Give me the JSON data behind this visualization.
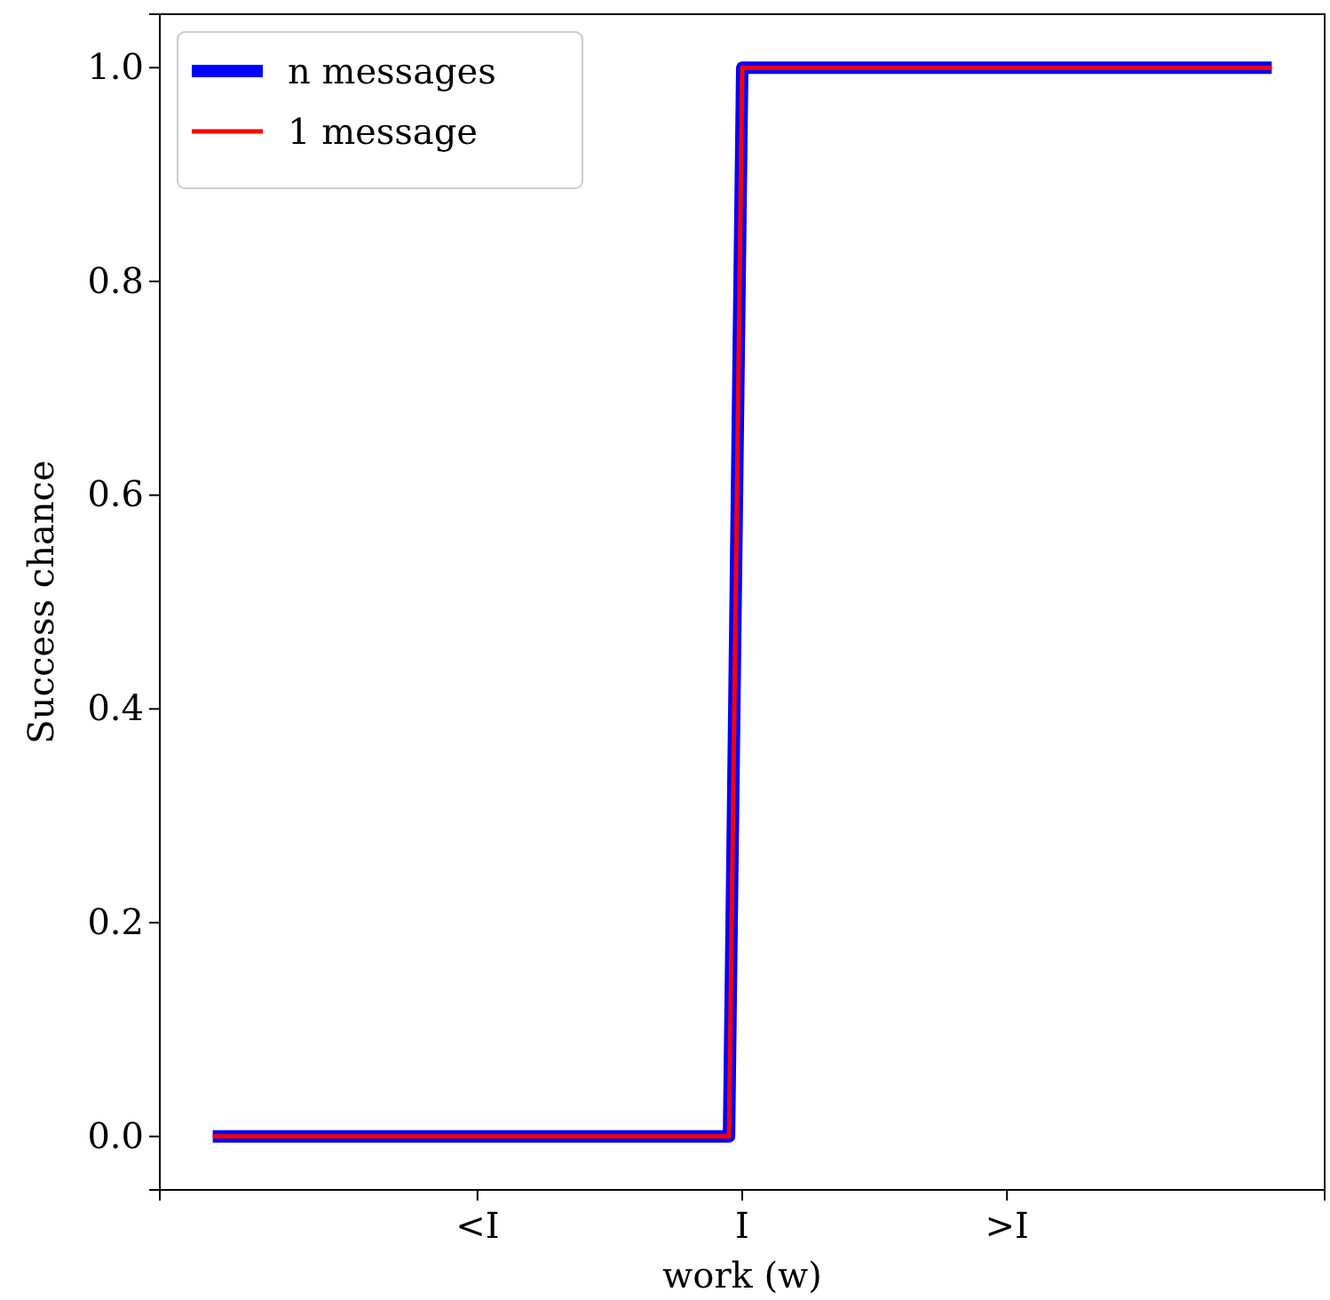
{
  "chart_data": {
    "type": "line",
    "xlabel": "work (w)",
    "ylabel": "Success chance",
    "categories": [
      null,
      null,
      null,
      null,
      null,
      null,
      null,
      null,
      null,
      null,
      null,
      null,
      null,
      null,
      null,
      null,
      null,
      null,
      null,
      null,
      "<I",
      null,
      null,
      null,
      null,
      null,
      null,
      null,
      null,
      null,
      null,
      null,
      null,
      null,
      null,
      null,
      null,
      null,
      null,
      null,
      "I",
      null,
      null,
      null,
      null,
      null,
      null,
      null,
      null,
      null,
      null,
      null,
      null,
      null,
      null,
      null,
      null,
      null,
      null,
      null,
      ">I",
      null,
      null,
      null,
      null,
      null,
      null,
      null,
      null,
      null,
      null,
      null,
      null,
      null,
      null,
      null,
      null,
      null,
      null,
      null,
      null
    ],
    "series": [
      {
        "name": "n messages",
        "color": "#0000ff",
        "values": [
          0,
          0,
          0,
          0,
          0,
          0,
          0,
          0,
          0,
          0,
          0,
          0,
          0,
          0,
          0,
          0,
          0,
          0,
          0,
          0,
          0,
          0,
          0,
          0,
          0,
          0,
          0,
          0,
          0,
          0,
          0,
          0,
          0,
          0,
          0,
          0,
          0,
          0,
          0,
          0,
          1,
          1,
          1,
          1,
          1,
          1,
          1,
          1,
          1,
          1,
          1,
          1,
          1,
          1,
          1,
          1,
          1,
          1,
          1,
          1,
          1,
          1,
          1,
          1,
          1,
          1,
          1,
          1,
          1,
          1,
          1,
          1,
          1,
          1,
          1,
          1,
          1,
          1,
          1,
          1,
          1
        ]
      },
      {
        "name": "1 message",
        "color": "#ff0000",
        "values": [
          0,
          0,
          0,
          0,
          0,
          0,
          0,
          0,
          0,
          0,
          0,
          0,
          0,
          0,
          0,
          0,
          0,
          0,
          0,
          0,
          0,
          0,
          0,
          0,
          0,
          0,
          0,
          0,
          0,
          0,
          0,
          0,
          0,
          0,
          0,
          0,
          0,
          0,
          0,
          0,
          1,
          1,
          1,
          1,
          1,
          1,
          1,
          1,
          1,
          1,
          1,
          1,
          1,
          1,
          1,
          1,
          1,
          1,
          1,
          1,
          1,
          1,
          1,
          1,
          1,
          1,
          1,
          1,
          1,
          1,
          1,
          1,
          1,
          1,
          1,
          1,
          1,
          1,
          1,
          1,
          1
        ]
      }
    ],
    "ylim": [
      -0.05,
      1.05
    ],
    "yticks": [
      {
        "value": 0,
        "label": "0.0"
      },
      {
        "value": 0.2,
        "label": "0.2"
      },
      {
        "value": 0.4,
        "label": "0.4"
      },
      {
        "value": 0.6,
        "label": "0.6"
      },
      {
        "value": 0.8,
        "label": "0.8"
      },
      {
        "value": 1,
        "label": "1.0"
      }
    ],
    "legend": "top left",
    "grid": false
  }
}
